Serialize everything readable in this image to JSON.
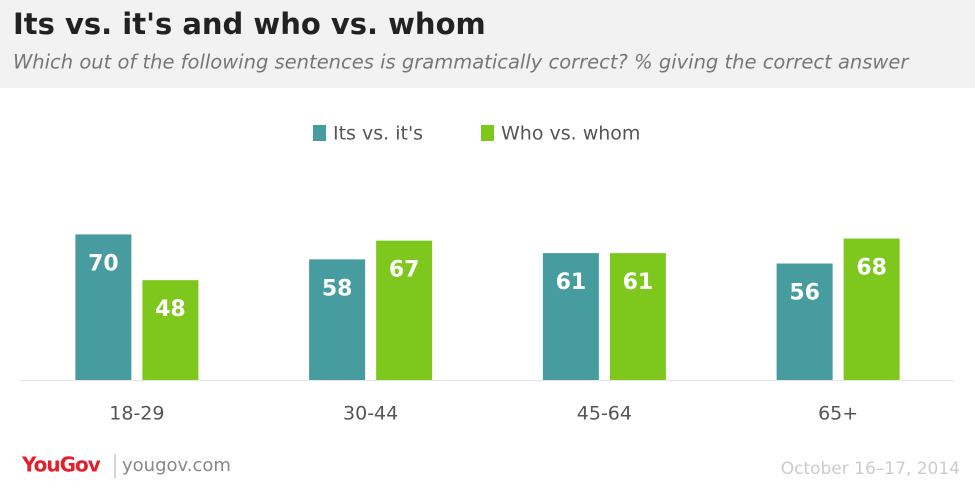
{
  "chart_data": {
    "type": "bar",
    "title": "Its vs. it's and who vs. whom",
    "subtitle": "Which out of the following sentences is grammatically correct? % giving the correct answer",
    "categories": [
      "18-29",
      "30-44",
      "45-64",
      "65+"
    ],
    "series": [
      {
        "name": "Its vs. it's",
        "color": "#469c9f",
        "values": [
          70,
          58,
          61,
          56
        ]
      },
      {
        "name": "Who vs. whom",
        "color": "#7ec81e",
        "values": [
          48,
          67,
          61,
          68
        ]
      }
    ],
    "ylim": [
      0,
      100
    ],
    "legend": "top",
    "logo": "YouGov",
    "website": "yougov.com",
    "date": "October 16–17, 2014"
  }
}
